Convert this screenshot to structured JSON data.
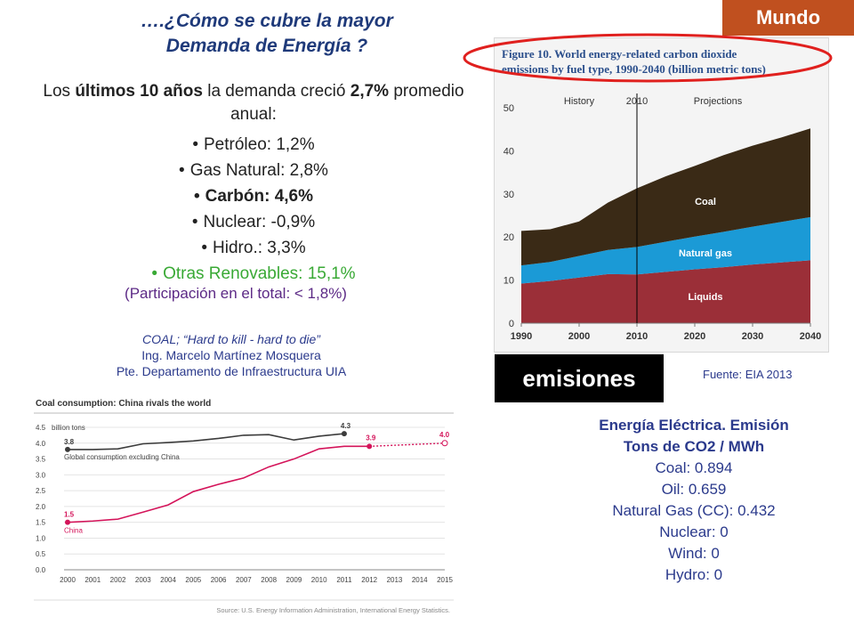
{
  "slide": {
    "title_line1": "….¿Cómo se cubre la mayor",
    "title_line2": "Demanda de Energía ?",
    "badge": "Mundo",
    "intro": {
      "pre": "Los ",
      "bold": "últimos 10 años",
      "mid": " la demanda  creció ",
      "bold2": "2,7%",
      "post": " promedio anual:"
    },
    "bullets": [
      {
        "text": "Petróleo: 1,2%",
        "style": "normal"
      },
      {
        "text": "Gas Natural: 2,8%",
        "style": "normal"
      },
      {
        "text": "Carbón: 4,6%",
        "style": "bold"
      },
      {
        "text": "Nuclear: -0,9%",
        "style": "normal"
      },
      {
        "text": "Hidro.: 3,3%",
        "style": "normal"
      },
      {
        "text": "Otras Renovables: 15,1%",
        "style": "green"
      }
    ],
    "participation": "(Participación en el total: < 1,8%)",
    "quote_line1": "COAL; “Hard to kill - hard to die”",
    "quote_line2": "Ing. Marcelo Martínez Mosquera",
    "quote_line3": "Pte. Departamento de Infraestructura UIA",
    "emissions_label": "emisiones",
    "source": "Fuente: EIA 2013",
    "electricity": {
      "title1": "Energía Eléctrica. Emisión",
      "title2": "Tons de CO2 / MWh",
      "rows": [
        "Coal: 0.894",
        "Oil: 0.659",
        "Natural Gas (CC): 0.432",
        "Nuclear: 0",
        "Wind: 0",
        "Hydro: 0"
      ]
    },
    "colors": {
      "title": "#1f3a7a",
      "badge": "#c0501f",
      "highlight_ellipse": "#e0201e",
      "green": "#39a935"
    }
  },
  "chart_data": [
    {
      "type": "area",
      "title": "Figure 10. World energy-related carbon dioxide emissions by fuel type, 1990-2040 (billion metric tons)",
      "annotations": [
        "History",
        "2010",
        "Projections"
      ],
      "x": [
        1990,
        1995,
        2000,
        2005,
        2010,
        2015,
        2020,
        2025,
        2030,
        2035,
        2040
      ],
      "series": [
        {
          "name": "Liquids",
          "color": "#9b2f38",
          "values": [
            9.2,
            9.8,
            10.6,
            11.4,
            11.3,
            11.9,
            12.5,
            13.0,
            13.6,
            14.1,
            14.6
          ]
        },
        {
          "name": "Natural gas",
          "color": "#1b9ad6",
          "values": [
            4.2,
            4.4,
            5.0,
            5.6,
            6.4,
            7.0,
            7.6,
            8.2,
            8.8,
            9.4,
            10.0
          ]
        },
        {
          "name": "Coal",
          "color": "#3a2a16",
          "values": [
            8.0,
            7.6,
            8.0,
            11.0,
            13.6,
            15.2,
            16.4,
            17.8,
            18.8,
            19.6,
            20.6
          ]
        }
      ],
      "xlim": [
        1990,
        2040
      ],
      "ylim": [
        0,
        50
      ],
      "xticks": [
        1990,
        2000,
        2010,
        2020,
        2030,
        2040
      ],
      "yticks": [
        0,
        10,
        20,
        30,
        40,
        50
      ]
    },
    {
      "type": "line",
      "title": "Coal consumption: China rivals the world",
      "ylabel": "billion tons",
      "categories": [
        "2000",
        "2001",
        "2002",
        "2003",
        "2004",
        "2005",
        "2006",
        "2007",
        "2008",
        "2009",
        "2010",
        "2011",
        "2012",
        "2013",
        "2014",
        "2015"
      ],
      "ylim": [
        0,
        4.5
      ],
      "yticks": [
        "0.0",
        "0.5",
        "1.0",
        "1.5",
        "2.0",
        "2.5",
        "3.0",
        "3.5",
        "4.0",
        "4.5"
      ],
      "series": [
        {
          "name": "Global consumption excluding China",
          "color": "#3c3c3c",
          "values": [
            3.8,
            3.8,
            3.82,
            3.98,
            4.02,
            4.07,
            4.15,
            4.25,
            4.27,
            4.1,
            4.22,
            4.3,
            null,
            null,
            null,
            null
          ]
        },
        {
          "name": "China",
          "color": "#d4145a",
          "values": [
            1.5,
            1.54,
            1.6,
            1.82,
            2.05,
            2.47,
            2.7,
            2.9,
            3.25,
            3.5,
            3.82,
            3.9,
            3.9,
            null,
            null,
            null
          ],
          "projection": {
            "from": "2012",
            "to": "2015",
            "values": [
              3.9,
              4.0
            ]
          }
        }
      ],
      "data_labels": [
        "3.8",
        "4.3",
        "1.5",
        "3.9",
        "4.0"
      ],
      "source": "Source: U.S. Energy Information Administration, International Energy Statistics."
    }
  ]
}
